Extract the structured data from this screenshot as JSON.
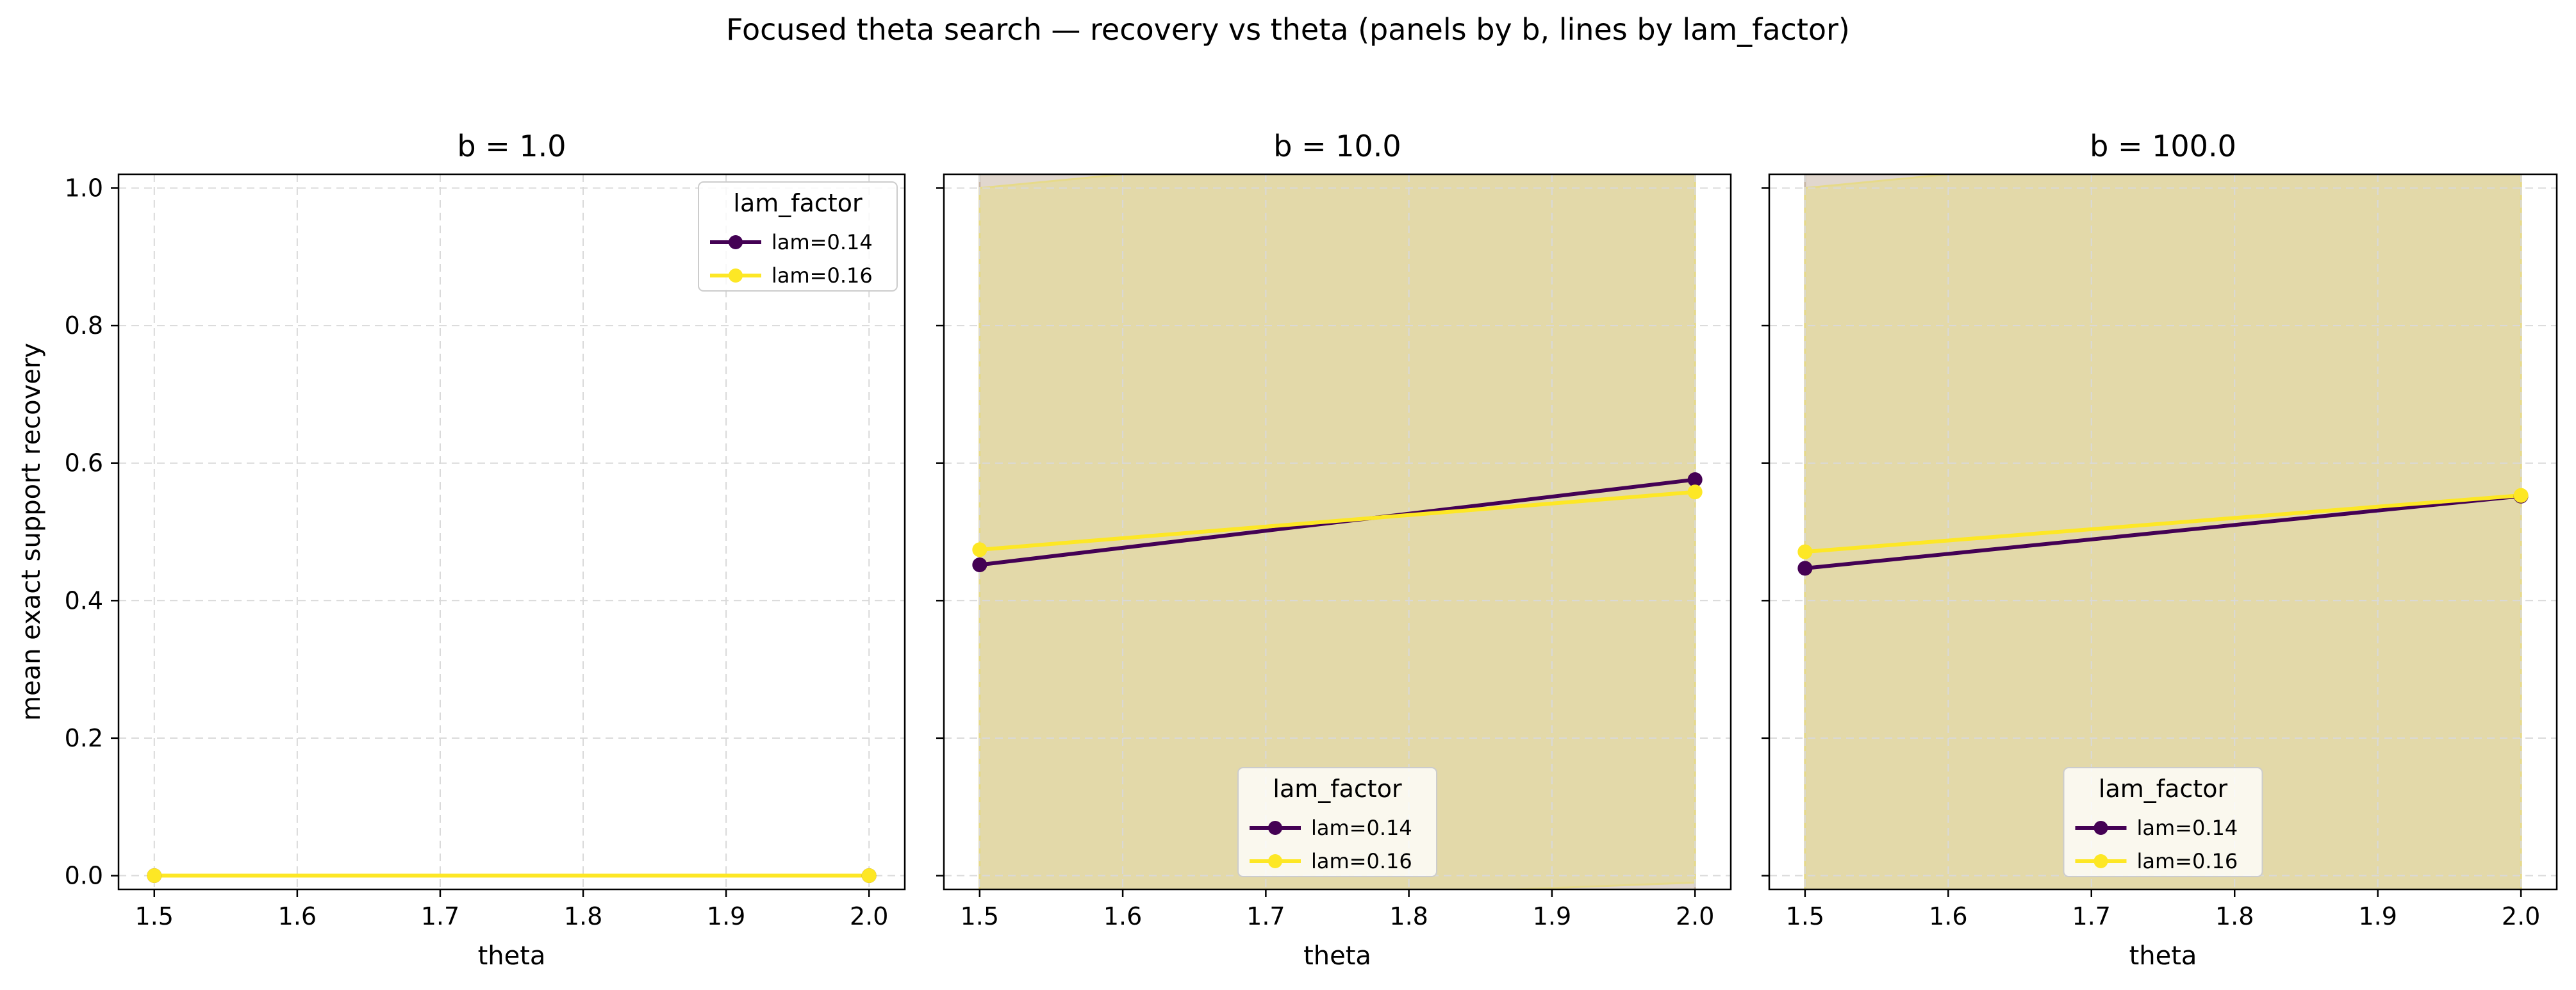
{
  "figure": {
    "suptitle": "Focused theta search — recovery vs theta (panels by b, lines by lam_factor)"
  },
  "colors": {
    "lam_014": "#440154",
    "lam_016": "#fde725",
    "band_014": "#c8b7a6",
    "band_016": "#e6da8a",
    "grid": "#d9d9d9",
    "axis": "#000000"
  },
  "chart_data": [
    {
      "type": "line",
      "title": "b = 1.0",
      "xlabel": "theta",
      "ylabel": "mean exact support recovery",
      "x": [
        1.5,
        2.0
      ],
      "xlim": [
        1.475,
        2.025
      ],
      "ylim": [
        -0.02,
        1.02
      ],
      "xticks": [
        "1.5",
        "1.6",
        "1.7",
        "1.8",
        "1.9",
        "2.0"
      ],
      "yticks": [
        "0.0",
        "0.2",
        "0.4",
        "0.6",
        "0.8",
        "1.0"
      ],
      "grid": true,
      "legend": {
        "title": "lam_factor",
        "placement": "upper right"
      },
      "series": [
        {
          "name": "lam=0.14",
          "values": [
            0.0,
            0.0
          ],
          "band": null
        },
        {
          "name": "lam=0.16",
          "values": [
            0.0,
            0.0
          ],
          "band": null
        }
      ]
    },
    {
      "type": "line",
      "title": "b = 10.0",
      "xlabel": "theta",
      "ylabel": "",
      "x": [
        1.5,
        2.0
      ],
      "xlim": [
        1.475,
        2.025
      ],
      "ylim": [
        -0.02,
        1.02
      ],
      "xticks": [
        "1.5",
        "1.6",
        "1.7",
        "1.8",
        "1.9",
        "2.0"
      ],
      "yticks": [],
      "grid": true,
      "legend": {
        "title": "lam_factor",
        "placement": "lower center"
      },
      "series": [
        {
          "name": "lam=0.14",
          "values": [
            0.452,
            0.576
          ],
          "band": {
            "lower": [
              -0.1,
              -0.1
            ],
            "upper": [
              1.1,
              1.1
            ]
          }
        },
        {
          "name": "lam=0.16",
          "values": [
            0.474,
            0.558
          ],
          "band": {
            "lower": [
              -0.05,
              -0.01
            ],
            "upper": [
              1.0,
              1.1
            ]
          }
        }
      ]
    },
    {
      "type": "line",
      "title": "b = 100.0",
      "xlabel": "theta",
      "ylabel": "",
      "x": [
        1.5,
        2.0
      ],
      "xlim": [
        1.475,
        2.025
      ],
      "ylim": [
        -0.02,
        1.02
      ],
      "xticks": [
        "1.5",
        "1.6",
        "1.7",
        "1.8",
        "1.9",
        "2.0"
      ],
      "yticks": [],
      "grid": true,
      "legend": {
        "title": "lam_factor",
        "placement": "lower center"
      },
      "series": [
        {
          "name": "lam=0.14",
          "values": [
            0.447,
            0.552
          ],
          "band": {
            "lower": [
              -0.1,
              -0.1
            ],
            "upper": [
              1.1,
              1.1
            ]
          }
        },
        {
          "name": "lam=0.16",
          "values": [
            0.471,
            0.553
          ],
          "band": {
            "lower": [
              -0.05,
              -0.05
            ],
            "upper": [
              1.0,
              1.1
            ]
          }
        }
      ]
    }
  ]
}
